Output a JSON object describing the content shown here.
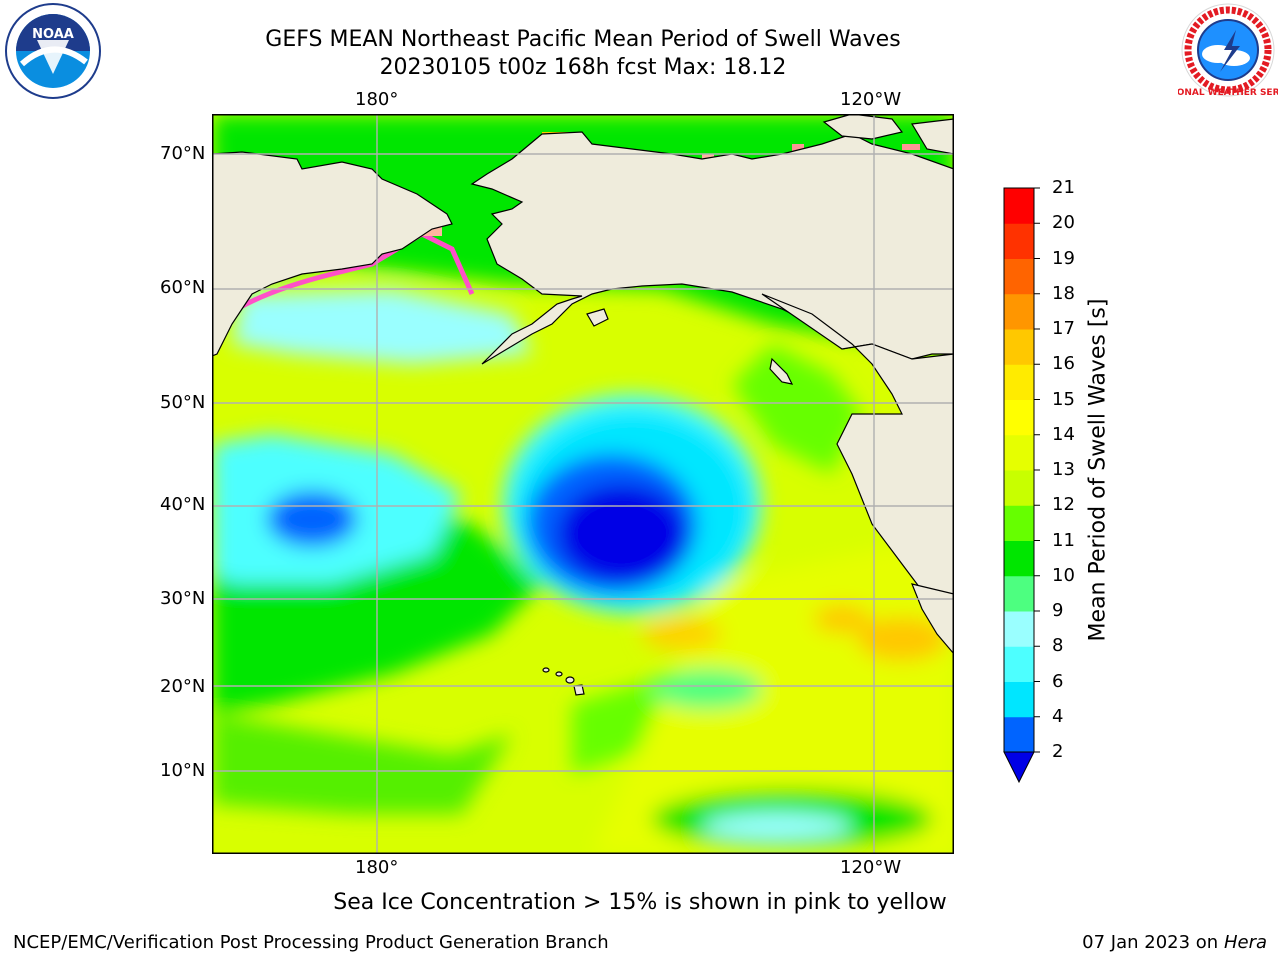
{
  "header": {
    "title_line1": "GEFS MEAN Northeast Pacific Mean Period of Swell Waves",
    "title_line2": "20230105 t00z 168h fcst   Max: 18.12"
  },
  "logos": {
    "left": {
      "icon": "noaa-logo",
      "text": "NOAA"
    },
    "right": {
      "icon": "nws-logo",
      "text": "NATIONAL WEATHER SERVICE"
    }
  },
  "map": {
    "lon_labels_top": [
      "180°",
      "120°W"
    ],
    "lon_labels_bottom": [
      "180°",
      "120°W"
    ],
    "lat_labels": [
      "70°N",
      "60°N",
      "50°N",
      "40°N",
      "30°N",
      "20°N",
      "10°N"
    ],
    "land_color": "#efecdc",
    "gridline_color": "#b0b0b0"
  },
  "colorbar": {
    "label": "Mean Period of Swell Waves [s]",
    "tick_labels": [
      "2",
      "4",
      "6",
      "8",
      "9",
      "10",
      "11",
      "12",
      "13",
      "14",
      "15",
      "16",
      "17",
      "18",
      "19",
      "20",
      "21"
    ],
    "colors": [
      "#0064ff",
      "#00e6ff",
      "#4dffff",
      "#9affff",
      "#4dff80",
      "#00e600",
      "#66ff00",
      "#c8ff00",
      "#e6ff00",
      "#ffff00",
      "#ffeb00",
      "#ffc800",
      "#ff9600",
      "#ff6400",
      "#ff3200",
      "#ff0000"
    ],
    "under_color": "#0000e6"
  },
  "notes": {
    "sea_ice": "Sea Ice Concentration > 15% is shown in pink to yellow"
  },
  "footer": {
    "left": "NCEP/EMC/Verification Post Processing Product Generation Branch",
    "date": "07 Jan 2023 on ",
    "machine": "Hera"
  }
}
